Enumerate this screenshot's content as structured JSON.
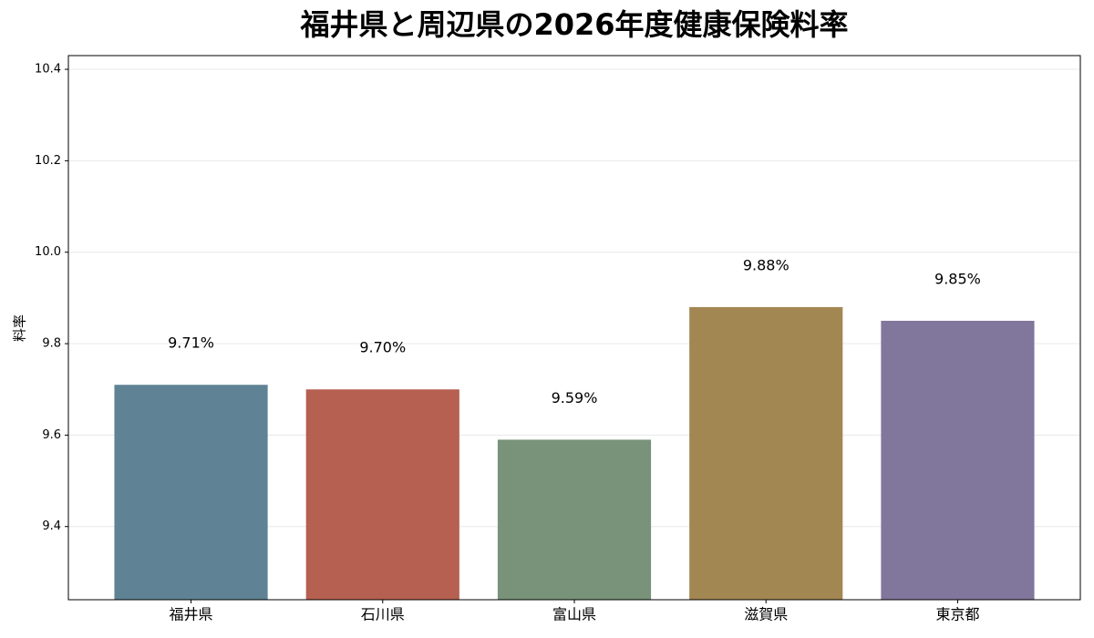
{
  "chart_data": {
    "type": "bar",
    "title": "福井県と周辺県の2026年度健康保険料率",
    "y_label": "料率",
    "categories": [
      "福井県",
      "石川県",
      "富山県",
      "滋賀県",
      "東京都"
    ],
    "values": [
      9.71,
      9.7,
      9.59,
      9.88,
      9.85
    ],
    "value_labels": [
      "9.71%",
      "9.70%",
      "9.59%",
      "9.88%",
      "9.85%"
    ],
    "colors": [
      "#5f8394",
      "#b56050",
      "#78937a",
      "#a38752",
      "#81769b"
    ],
    "ylim": [
      9.24,
      10.43
    ],
    "yticks": [
      9.4,
      9.6,
      9.8,
      {
        "value": 10,
        "label": "10.0"
      },
      10.2,
      10.4
    ],
    "grid": true
  }
}
